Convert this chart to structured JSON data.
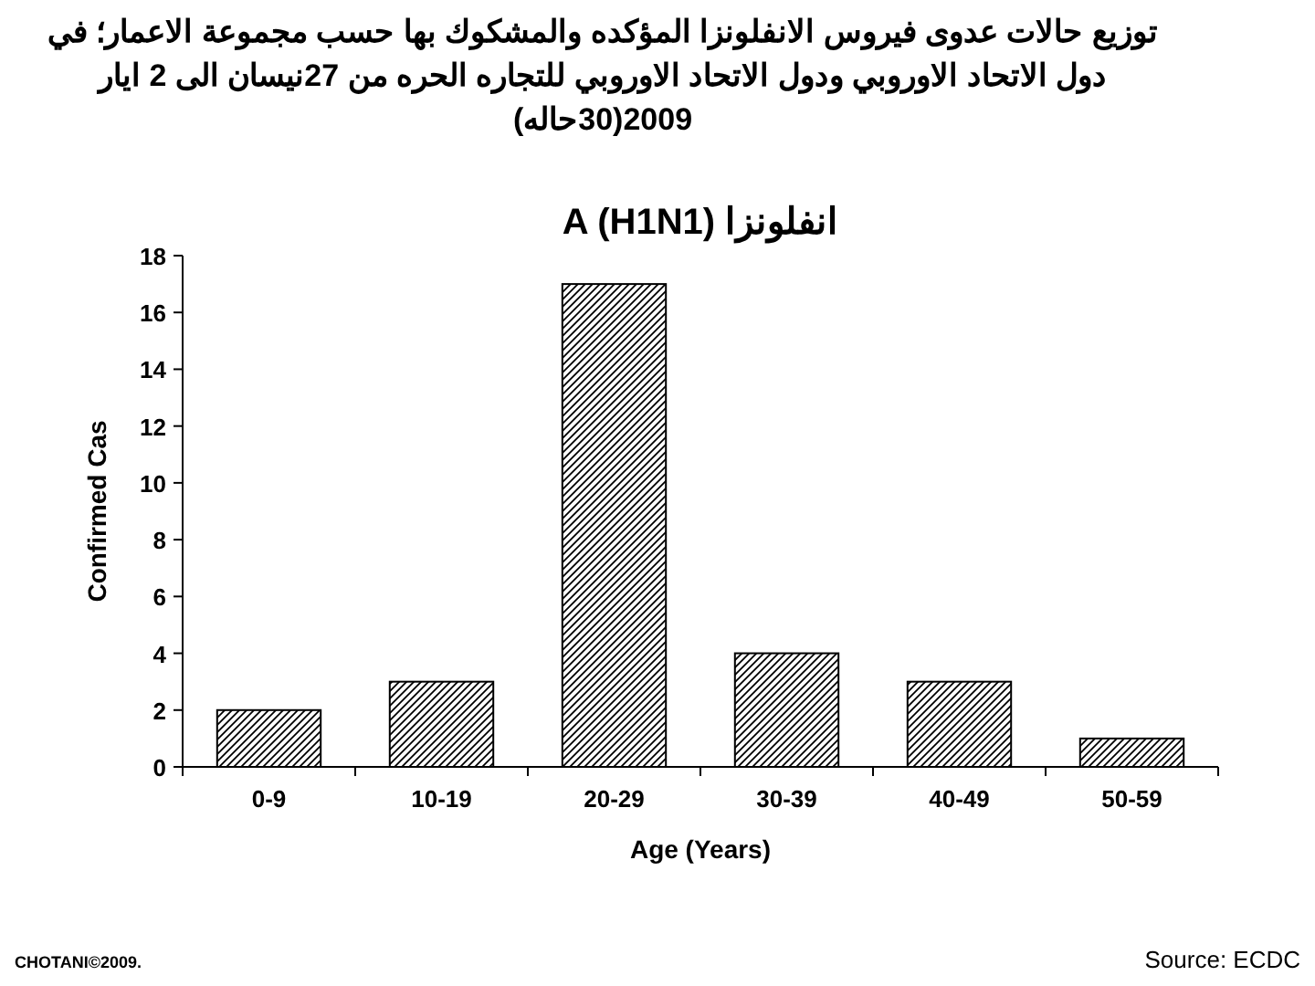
{
  "chart_data": {
    "type": "bar",
    "title": "توزيع حالات عدوى فيروس الانفلونزا المؤكده والمشكوك بها حسب مجموعة الاعمار؛ في دول الاتحاد الاوروبي ودول الاتحاد الاوروبي للتجاره الحره من 27نيسان الى 2 ايار 2009(30حاله)",
    "subtitle": "انفلونزا A (H1N1)",
    "xlabel": "Age (Years)",
    "ylabel": "Confirmed Cas",
    "categories": [
      "0-9",
      "10-19",
      "20-29",
      "30-39",
      "40-49",
      "50-59"
    ],
    "values": [
      2,
      3,
      17,
      4,
      3,
      1
    ],
    "color": "#000000",
    "ylim": [
      0,
      18
    ],
    "yticks": [
      0,
      2,
      4,
      6,
      8,
      10,
      12,
      14,
      16,
      18
    ],
    "grid": false,
    "annotations": [
      "CHOTANI©2009.",
      "Source: ECDC"
    ]
  }
}
